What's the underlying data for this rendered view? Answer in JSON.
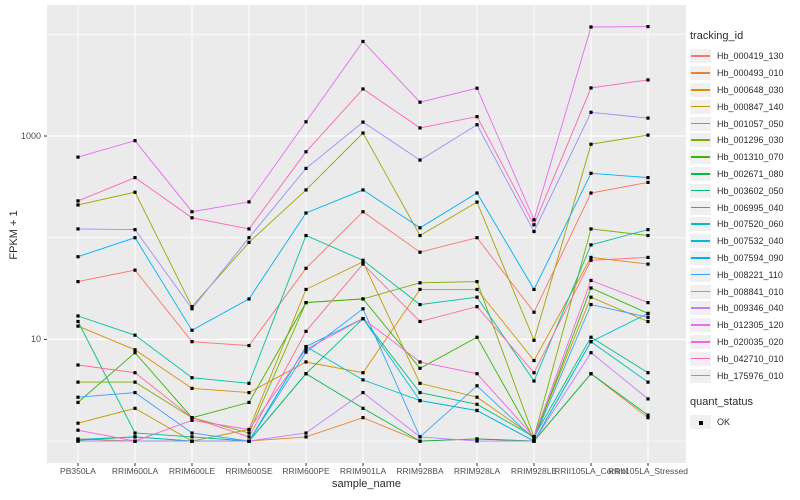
{
  "chart_data": {
    "type": "line",
    "title": "",
    "xlabel": "sample_name",
    "ylabel": "FPKM + 1",
    "y_scale": "log10",
    "grid": true,
    "panel_bg": "#EBEBEB",
    "grid_color": "#FFFFFF",
    "point_color": "#000000",
    "point_shape": "filled-square",
    "y_ticks": [
      {
        "label": "1000",
        "value": 1000
      },
      {
        "label": "10",
        "value": 10
      }
    ],
    "y_major_gridline_values": [
      10,
      1000
    ],
    "y_minor_gridline_values": [
      1,
      100,
      10000
    ],
    "categories": [
      "PB350LA",
      "RRIM600LA",
      "RRIM600LE",
      "RRIM600SE",
      "RRIM600PE",
      "RRIM901LA",
      "RRIM928BA",
      "RRIM928LA",
      "RRIM928LE",
      "RRII105LA_Control",
      "RRII105LA_Stressed"
    ],
    "legend": {
      "color_title": "tracking_id",
      "shape_title": "quant_status",
      "shape_items": [
        {
          "label": "OK"
        }
      ],
      "position": "right"
    },
    "series": [
      {
        "name": "Hb_000419_130",
        "color": "#F8766D",
        "values": [
          37,
          48,
          9.5,
          8.7,
          50,
          180,
          72,
          100,
          18.5,
          275,
          350
        ]
      },
      {
        "name": "Hb_000493_010",
        "color": "#EA8331",
        "values": [
          1.05,
          1.0,
          1.0,
          1.0,
          1.1,
          1.7,
          1.0,
          1.05,
          1.0,
          4.6,
          1.7
        ]
      },
      {
        "name": "Hb_000648_030",
        "color": "#D89000",
        "values": [
          13.5,
          7.9,
          3.3,
          3.0,
          6.0,
          4.7,
          31,
          31,
          6.2,
          64,
          55
        ]
      },
      {
        "name": "Hb_000847_140",
        "color": "#C09B00",
        "values": [
          1.5,
          2.1,
          1.0,
          1.3,
          31,
          58,
          3.7,
          2.7,
          1.1,
          26,
          15
        ]
      },
      {
        "name": "Hb_001057_050",
        "color": "#A3A500",
        "values": [
          210,
          280,
          21,
          90,
          295,
          1070,
          105,
          224,
          9.8,
          830,
          1020
        ]
      },
      {
        "name": "Hb_001296_030",
        "color": "#7CAE00",
        "values": [
          3.8,
          3.8,
          1.7,
          1.2,
          23,
          25,
          36,
          37,
          1.1,
          122,
          105
        ]
      },
      {
        "name": "Hb_001310_070",
        "color": "#39B600",
        "values": [
          2.4,
          7.4,
          1.7,
          2.4,
          23,
          25,
          5.2,
          10.5,
          1.05,
          32,
          18
        ]
      },
      {
        "name": "Hb_002671_080",
        "color": "#00BB4E",
        "values": [
          1.02,
          1.1,
          1.0,
          1.0,
          4.6,
          2.1,
          1.0,
          1.05,
          1.0,
          4.6,
          1.8
        ]
      },
      {
        "name": "Hb_003602_050",
        "color": "#00BF7D",
        "values": [
          15,
          1.2,
          1.1,
          1.0,
          4.6,
          16,
          3.0,
          2.3,
          1.1,
          10.5,
          4.7
        ]
      },
      {
        "name": "Hb_006995_040",
        "color": "#00C1A3",
        "values": [
          17,
          11,
          4.2,
          3.7,
          105,
          60,
          22,
          26,
          3.9,
          85,
          120
        ]
      },
      {
        "name": "Hb_007520_060",
        "color": "#00BFC4",
        "values": [
          1.04,
          1.1,
          1.0,
          1.0,
          8.5,
          4.0,
          2.5,
          2.0,
          1.0,
          9.5,
          3.8
        ]
      },
      {
        "name": "Hb_007532_040",
        "color": "#00BAE0",
        "values": [
          1.0,
          1.0,
          1.0,
          1.0,
          8.5,
          16,
          2.5,
          2.0,
          1.0,
          9.5,
          18
        ]
      },
      {
        "name": "Hb_007594_090",
        "color": "#00B0F6",
        "values": [
          65,
          100,
          12.3,
          25,
          175,
          295,
          125,
          275,
          31,
          430,
          390
        ]
      },
      {
        "name": "Hb_008221_110",
        "color": "#35A2FF",
        "values": [
          2.7,
          3.0,
          1.2,
          1.0,
          7.5,
          20,
          1.1,
          3.5,
          1.05,
          22,
          16.5
        ]
      },
      {
        "name": "Hb_008841_010",
        "color": "#9590FF",
        "values": [
          122,
          120,
          20,
          100,
          480,
          1370,
          580,
          1290,
          115,
          1710,
          1500
        ]
      },
      {
        "name": "Hb_009346_040",
        "color": "#C77CFF",
        "values": [
          1.0,
          1.0,
          1.0,
          1.0,
          1.2,
          3.0,
          1.1,
          1.0,
          1.0,
          7.4,
          2.6
        ]
      },
      {
        "name": "Hb_012305_120",
        "color": "#E76BF3",
        "values": [
          620,
          900,
          180,
          225,
          1380,
          8500,
          2150,
          2950,
          150,
          11800,
          11900
        ]
      },
      {
        "name": "Hb_020035_020",
        "color": "#FA62DB",
        "values": [
          1.28,
          1.0,
          1.6,
          1.3,
          8.0,
          16,
          6.0,
          4.6,
          1.1,
          38,
          23
        ]
      },
      {
        "name": "Hb_042710_010",
        "color": "#FF62BC",
        "values": [
          230,
          390,
          157,
          122,
          700,
          2900,
          1200,
          1550,
          134,
          2970,
          3560
        ]
      },
      {
        "name": "Hb_175976_010",
        "color": "#FF6A98",
        "values": [
          5.6,
          4.7,
          1.7,
          1.1,
          12,
          55,
          15,
          21,
          4.7,
          60,
          64
        ]
      }
    ]
  }
}
